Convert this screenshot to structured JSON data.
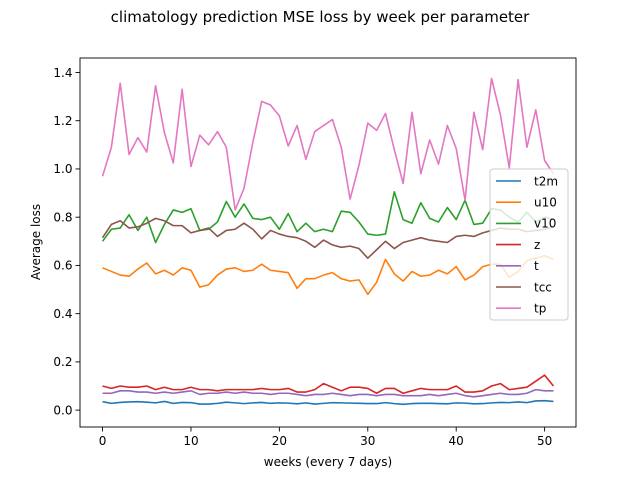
{
  "chart_data": {
    "type": "line",
    "title": "climatology prediction MSE loss by week per parameter",
    "xlabel": "weeks (every 7 days)",
    "ylabel": "Average loss",
    "xlim": [
      -2.55,
      53.55
    ],
    "ylim": [
      -0.07,
      1.46
    ],
    "xticks": [
      0,
      10,
      20,
      30,
      40,
      50
    ],
    "yticks": [
      0.0,
      0.2,
      0.4,
      0.6,
      0.8,
      1.0,
      1.2,
      1.4
    ],
    "ytick_labels": [
      "0.0",
      "0.2",
      "0.4",
      "0.6",
      "0.8",
      "1.0",
      "1.2",
      "1.4"
    ],
    "grid": false,
    "legend_position": "center-right",
    "x": [
      0,
      1,
      2,
      3,
      4,
      5,
      6,
      7,
      8,
      9,
      10,
      11,
      12,
      13,
      14,
      15,
      16,
      17,
      18,
      19,
      20,
      21,
      22,
      23,
      24,
      25,
      26,
      27,
      28,
      29,
      30,
      31,
      32,
      33,
      34,
      35,
      36,
      37,
      38,
      39,
      40,
      41,
      42,
      43,
      44,
      45,
      46,
      47,
      48,
      49,
      50,
      51
    ],
    "series": [
      {
        "name": "t2m",
        "color": "#1f77b4",
        "values": [
          0.035,
          0.028,
          0.032,
          0.034,
          0.035,
          0.033,
          0.03,
          0.036,
          0.028,
          0.032,
          0.031,
          0.025,
          0.025,
          0.028,
          0.033,
          0.03,
          0.027,
          0.03,
          0.032,
          0.028,
          0.03,
          0.029,
          0.026,
          0.03,
          0.025,
          0.028,
          0.031,
          0.03,
          0.029,
          0.028,
          0.027,
          0.027,
          0.031,
          0.027,
          0.024,
          0.027,
          0.028,
          0.028,
          0.027,
          0.026,
          0.03,
          0.029,
          0.026,
          0.027,
          0.03,
          0.032,
          0.031,
          0.034,
          0.031,
          0.038,
          0.039,
          0.036
        ]
      },
      {
        "name": "u10",
        "color": "#ff7f0e",
        "values": [
          0.59,
          0.575,
          0.56,
          0.555,
          0.585,
          0.61,
          0.565,
          0.58,
          0.56,
          0.59,
          0.58,
          0.51,
          0.52,
          0.56,
          0.585,
          0.59,
          0.575,
          0.58,
          0.605,
          0.58,
          0.575,
          0.57,
          0.505,
          0.545,
          0.545,
          0.56,
          0.57,
          0.545,
          0.535,
          0.54,
          0.48,
          0.53,
          0.625,
          0.565,
          0.535,
          0.575,
          0.555,
          0.56,
          0.58,
          0.565,
          0.595,
          0.54,
          0.56,
          0.595,
          0.605,
          0.605,
          0.55,
          0.575,
          0.62,
          0.63,
          0.64,
          0.625
        ]
      },
      {
        "name": "v10",
        "color": "#2ca02c",
        "values": [
          0.7,
          0.75,
          0.755,
          0.81,
          0.745,
          0.8,
          0.695,
          0.77,
          0.83,
          0.82,
          0.835,
          0.745,
          0.75,
          0.78,
          0.865,
          0.8,
          0.855,
          0.795,
          0.79,
          0.8,
          0.75,
          0.815,
          0.74,
          0.775,
          0.74,
          0.75,
          0.74,
          0.825,
          0.82,
          0.78,
          0.73,
          0.725,
          0.73,
          0.905,
          0.79,
          0.775,
          0.86,
          0.795,
          0.78,
          0.84,
          0.79,
          0.87,
          0.77,
          0.775,
          0.835,
          0.83,
          0.8,
          0.78,
          0.82,
          0.78,
          0.8,
          0.79
        ]
      },
      {
        "name": "z",
        "color": "#d62728",
        "values": [
          0.1,
          0.09,
          0.1,
          0.095,
          0.095,
          0.1,
          0.085,
          0.095,
          0.085,
          0.085,
          0.095,
          0.085,
          0.085,
          0.08,
          0.085,
          0.085,
          0.085,
          0.085,
          0.09,
          0.085,
          0.085,
          0.09,
          0.075,
          0.075,
          0.085,
          0.11,
          0.095,
          0.08,
          0.095,
          0.095,
          0.09,
          0.07,
          0.09,
          0.09,
          0.07,
          0.08,
          0.09,
          0.085,
          0.085,
          0.085,
          0.1,
          0.075,
          0.075,
          0.08,
          0.1,
          0.11,
          0.085,
          0.09,
          0.095,
          0.12,
          0.145,
          0.1
        ]
      },
      {
        "name": "t",
        "color": "#9467bd",
        "values": [
          0.07,
          0.07,
          0.08,
          0.08,
          0.075,
          0.075,
          0.07,
          0.075,
          0.07,
          0.075,
          0.08,
          0.065,
          0.07,
          0.07,
          0.075,
          0.07,
          0.075,
          0.07,
          0.07,
          0.065,
          0.07,
          0.07,
          0.065,
          0.06,
          0.065,
          0.065,
          0.07,
          0.065,
          0.06,
          0.065,
          0.065,
          0.06,
          0.065,
          0.065,
          0.06,
          0.06,
          0.06,
          0.065,
          0.06,
          0.065,
          0.07,
          0.06,
          0.055,
          0.06,
          0.065,
          0.07,
          0.065,
          0.065,
          0.07,
          0.085,
          0.08,
          0.08
        ]
      },
      {
        "name": "tcc",
        "color": "#8c564b",
        "values": [
          0.715,
          0.77,
          0.785,
          0.755,
          0.76,
          0.775,
          0.795,
          0.785,
          0.765,
          0.765,
          0.735,
          0.745,
          0.755,
          0.72,
          0.745,
          0.75,
          0.775,
          0.75,
          0.71,
          0.745,
          0.73,
          0.72,
          0.715,
          0.7,
          0.675,
          0.705,
          0.685,
          0.675,
          0.68,
          0.67,
          0.63,
          0.665,
          0.7,
          0.67,
          0.695,
          0.705,
          0.715,
          0.705,
          0.7,
          0.695,
          0.72,
          0.725,
          0.72,
          0.735,
          0.745,
          0.755,
          0.75,
          0.75,
          0.74,
          0.745,
          0.75,
          0.76
        ]
      },
      {
        "name": "tp",
        "color": "#e377c2",
        "values": [
          0.97,
          1.09,
          1.355,
          1.06,
          1.13,
          1.07,
          1.345,
          1.15,
          1.025,
          1.33,
          1.01,
          1.14,
          1.1,
          1.155,
          1.09,
          0.83,
          0.92,
          1.11,
          1.28,
          1.265,
          1.22,
          1.095,
          1.18,
          1.04,
          1.155,
          1.18,
          1.205,
          1.09,
          0.875,
          1.015,
          1.19,
          1.16,
          1.23,
          1.08,
          0.94,
          1.235,
          0.98,
          1.12,
          1.02,
          1.18,
          1.085,
          0.87,
          1.235,
          1.08,
          1.375,
          1.225,
          1.005,
          1.37,
          1.09,
          1.245,
          1.035,
          0.98
        ]
      }
    ]
  }
}
